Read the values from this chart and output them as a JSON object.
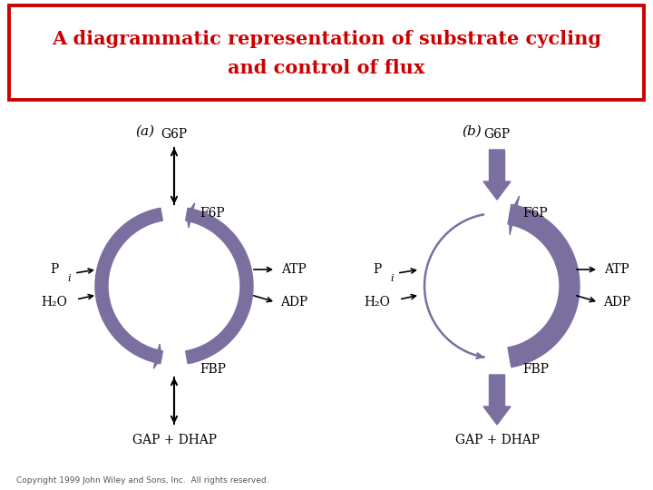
{
  "title_line1": "A diagrammatic representation of substrate cycling",
  "title_line2": "and control of flux",
  "title_color": "#cc0000",
  "title_fontsize": 15,
  "background_color": "#ffffff",
  "purple_color": "#7b6fa0",
  "black_color": "#000000",
  "copyright": "Copyright 1999 John Wiley and Sons, Inc.  All rights reserved.",
  "fig_w": 7.2,
  "fig_h": 5.4,
  "dpi": 100
}
